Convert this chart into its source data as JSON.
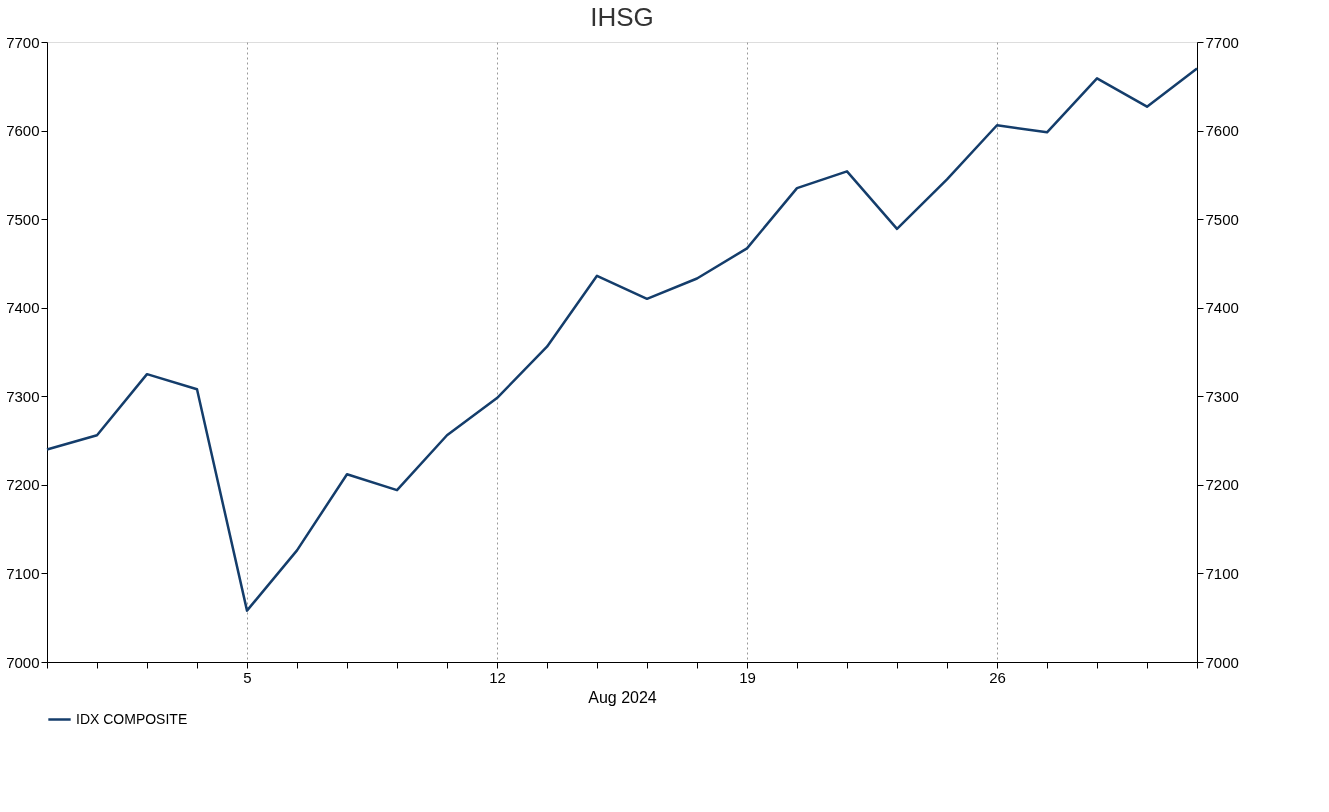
{
  "chart_data": {
    "type": "line",
    "title": "IHSG",
    "xlabel": "Aug 2024",
    "categories": [
      null,
      null,
      null,
      null,
      "5",
      null,
      null,
      null,
      null,
      "12",
      null,
      null,
      null,
      null,
      "19",
      null,
      null,
      null,
      null,
      "26",
      null,
      null,
      null,
      null
    ],
    "series": [
      {
        "name": "IDX COMPOSITE",
        "color": "#143d6b",
        "values": [
          7240,
          7256,
          7325,
          7308,
          7058,
          7126,
          7212,
          7194,
          7256,
          7298,
          7356,
          7436,
          7410,
          7433,
          7467,
          7535,
          7554,
          7489,
          7545,
          7606,
          7598,
          7659,
          7627,
          7670
        ]
      }
    ],
    "ylim": [
      7000,
      7700
    ],
    "yticks": [
      7000,
      7100,
      7200,
      7300,
      7400,
      7500,
      7600,
      7700
    ],
    "y2lim": [
      7000,
      7700
    ],
    "y2ticks": [
      7000,
      7100,
      7200,
      7300,
      7400,
      7500,
      7600,
      7700
    ],
    "grid": "x",
    "legend": "bottom left",
    "marker": "none",
    "line_style": "solid"
  }
}
